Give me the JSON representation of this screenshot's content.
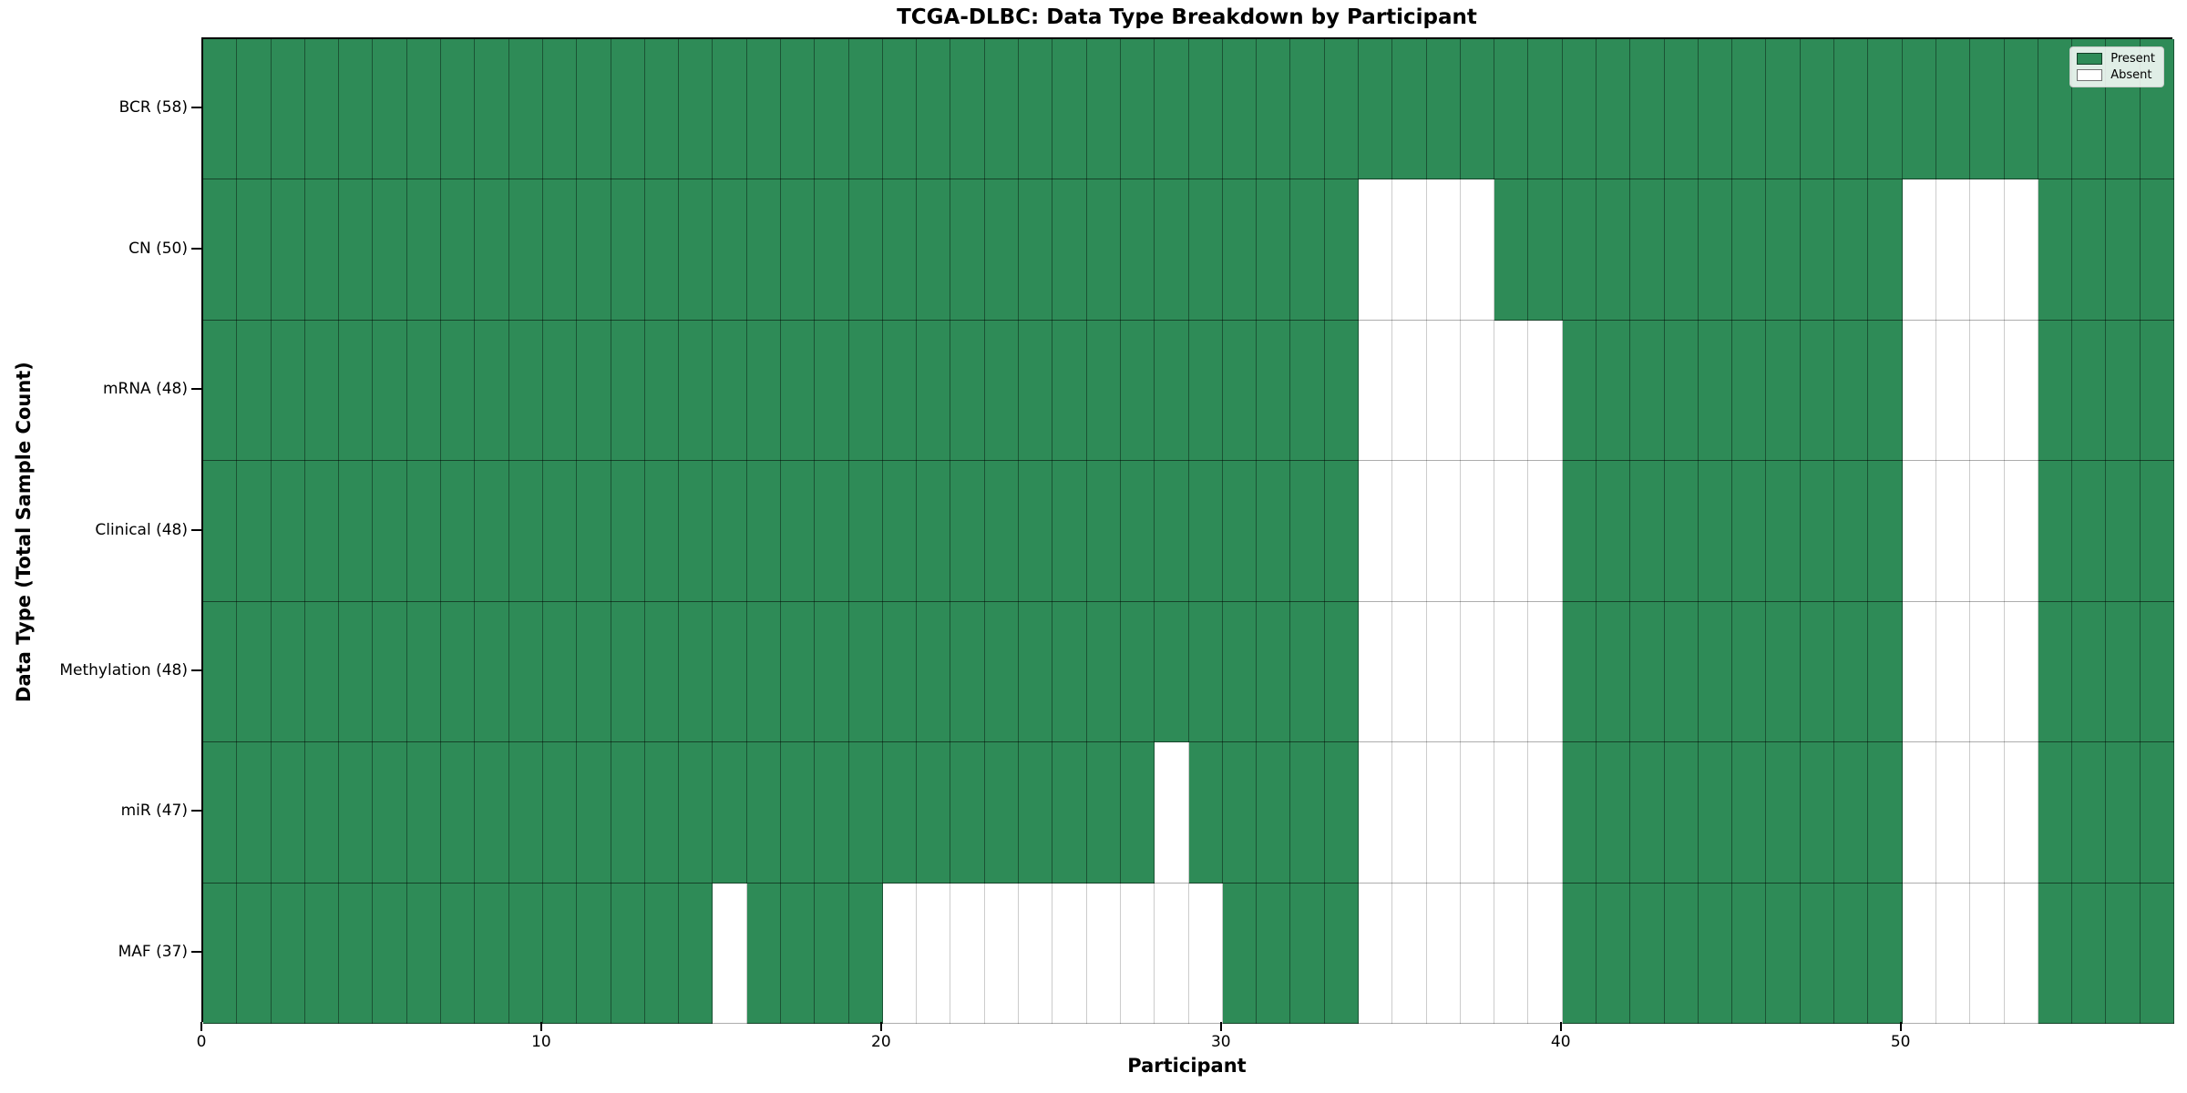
{
  "chart_data": {
    "type": "heatmap",
    "title": "TCGA-DLBC: Data Type Breakdown by Participant",
    "xlabel": "Participant",
    "ylabel": "Data Type (Total Sample Count)",
    "n_participants": 58,
    "xlim": [
      0,
      58
    ],
    "x_ticks": [
      0,
      10,
      20,
      30,
      40,
      50
    ],
    "grid": true,
    "colors": {
      "present": "#2e8b57",
      "absent": "#ffffff"
    },
    "legend": {
      "position": "upper right",
      "entries": [
        {
          "label": "Present",
          "color": "#2e8b57"
        },
        {
          "label": "Absent",
          "color": "#ffffff"
        }
      ]
    },
    "rows": [
      {
        "label": "BCR (58)",
        "data_type": "BCR",
        "total": 58,
        "absent_participants": []
      },
      {
        "label": "CN (50)",
        "data_type": "CN",
        "total": 50,
        "absent_participants": [
          34,
          35,
          36,
          37,
          50,
          51,
          52,
          53
        ]
      },
      {
        "label": "mRNA (48)",
        "data_type": "mRNA",
        "total": 48,
        "absent_participants": [
          34,
          35,
          36,
          37,
          38,
          39,
          50,
          51,
          52,
          53
        ]
      },
      {
        "label": "Clinical (48)",
        "data_type": "Clinical",
        "total": 48,
        "absent_participants": [
          34,
          35,
          36,
          37,
          38,
          39,
          50,
          51,
          52,
          53
        ]
      },
      {
        "label": "Methylation (48)",
        "data_type": "Methylation",
        "total": 48,
        "absent_participants": [
          34,
          35,
          36,
          37,
          38,
          39,
          50,
          51,
          52,
          53
        ]
      },
      {
        "label": "miR (47)",
        "data_type": "miR",
        "total": 47,
        "absent_participants": [
          28,
          34,
          35,
          36,
          37,
          38,
          39,
          50,
          51,
          52,
          53
        ]
      },
      {
        "label": "MAF (37)",
        "data_type": "MAF",
        "total": 37,
        "absent_participants": [
          15,
          20,
          21,
          22,
          23,
          24,
          25,
          26,
          27,
          28,
          29,
          34,
          35,
          36,
          37,
          38,
          39,
          50,
          51,
          52,
          53
        ]
      }
    ]
  }
}
